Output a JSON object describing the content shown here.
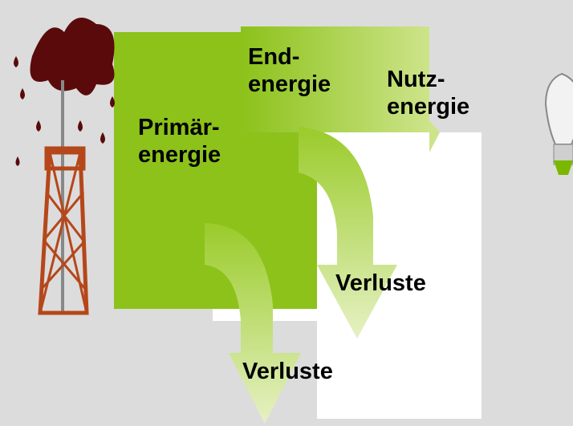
{
  "labels": {
    "primary": [
      "Primär-",
      "energie"
    ],
    "final": [
      "End-",
      "energie"
    ],
    "useful": [
      "Nutz-",
      "energie"
    ],
    "loss_1": "Verluste",
    "loss_2": "Verluste"
  }
}
